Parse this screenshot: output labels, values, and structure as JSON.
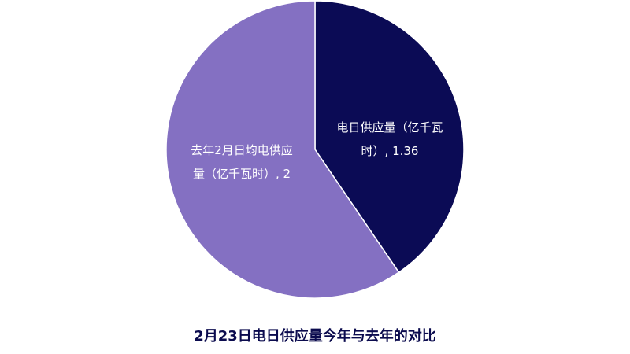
{
  "chart_data": {
    "type": "pie",
    "title": "2月23日电日供应量今年与去年的对比",
    "slices": [
      {
        "label": "电日供应量（亿千瓦时）",
        "value": 1.36,
        "display": "电日供应量（亿千瓦时）, 1.36",
        "line1": "电日供应量（亿千瓦",
        "line2": "时）, 1.36",
        "color": "#0b0b55"
      },
      {
        "label": "去年2月日均电供应量（亿千瓦时）",
        "value": 2,
        "display": "去年2月日均电供应量（亿千瓦时）, 2",
        "line1": "去年2月日均电供应",
        "line2": "量（亿千瓦时）, 2",
        "color": "#8470c2"
      }
    ],
    "start_angle": "12 o'clock",
    "direction": "clockwise",
    "legend": "none"
  }
}
